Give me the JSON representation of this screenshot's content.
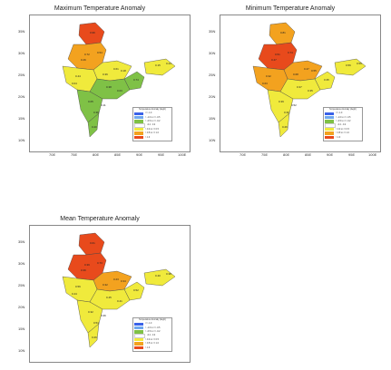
{
  "panels": {
    "max": {
      "title": "Maximum Temperature Anomaly"
    },
    "min": {
      "title": "Minimum Temperature Anomaly"
    },
    "mean": {
      "title": "Mean Temperature Anomaly"
    }
  },
  "axes": {
    "lat_labels": [
      "35N",
      "30N",
      "25N",
      "20N",
      "15N",
      "10N"
    ],
    "lon_labels": [
      "70E",
      "75E",
      "80E",
      "85E",
      "90E",
      "95E",
      "100E"
    ]
  },
  "legend": {
    "title": "Temperature Anomaly (degC)",
    "entries": [
      {
        "label": "<= -1.0",
        "color": "#3a62e8"
      },
      {
        "label": "> -1.0 to <= -0.5",
        "color": "#6fa8ee"
      },
      {
        "label": "> -0.5 to <= -0.2",
        "color": "#7fc146"
      },
      {
        "label": "-0.2 - 0.2",
        "color": "#ffffff"
      },
      {
        "label": "> 0.2 to <= 0.5",
        "color": "#f0ea3c"
      },
      {
        "label": "> 0.5 to <= 1.0",
        "color": "#f3a21f"
      },
      {
        "label": "> 1.0",
        "color": "#e84a1c"
      }
    ]
  },
  "map_values": {
    "max": [
      "0.96",
      "0.72",
      "0.54",
      "0.61",
      "0.74",
      "0.44",
      "0.38",
      "0.05",
      "0.20",
      "0.15",
      "0.18",
      "0.46",
      "0.36",
      "0.38",
      "0.03",
      "0.04",
      "0.11",
      "0.44"
    ],
    "min": [
      "0.81",
      "0.51",
      "0.74",
      "0.47",
      "0.35",
      "0.32",
      "0.37",
      "0.39",
      "0.26",
      "0.56",
      "0.55",
      "0.47",
      "0.68",
      "0.36",
      "0.35",
      "0.63",
      "0.52",
      "0.56"
    ],
    "mean": [
      "0.61",
      "0.39",
      "0.73",
      "0.23",
      "0.52",
      "0.56",
      "0.45",
      "0.32",
      "0.29",
      "0.40",
      "0.34",
      "0.36",
      "0.32",
      "0.54",
      "0.41",
      "0.44",
      "0.36",
      "0.38"
    ]
  }
}
